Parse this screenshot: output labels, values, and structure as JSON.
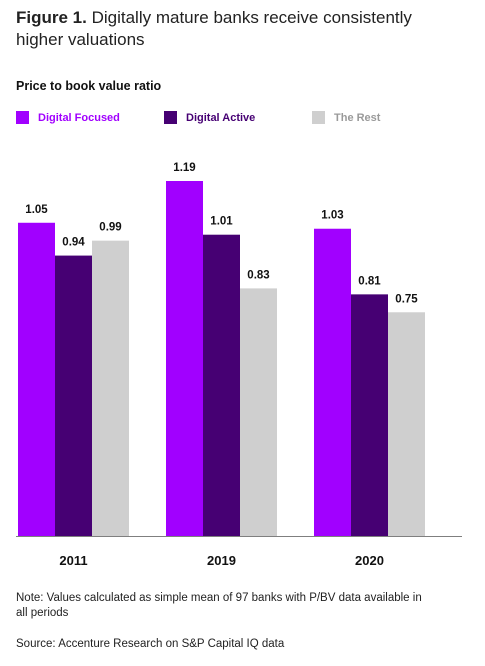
{
  "heading": {
    "figure_label": "Figure 1.",
    "title_line1": "Digitally mature banks receive consistently",
    "title_line2": "higher valuations"
  },
  "chart_data": {
    "type": "bar",
    "title": "Price to book value ratio",
    "categories": [
      "2011",
      "2019",
      "2020"
    ],
    "series": [
      {
        "name": "Digital Focused",
        "values": [
          1.05,
          1.19,
          1.03
        ],
        "color": "#a100ff"
      },
      {
        "name": "Digital Active",
        "values": [
          0.94,
          1.01,
          0.81
        ],
        "color": "#460073"
      },
      {
        "name": "The Rest",
        "values": [
          0.99,
          0.83,
          0.75
        ],
        "color": "#cfcfcf"
      }
    ],
    "ylim": [
      0,
      1.19
    ],
    "legend_position": "top-left",
    "grid": false,
    "axis_color": "#7f7f7f"
  },
  "footer": {
    "note": "Note: Values calculated as simple mean of 97 banks with P/BV data available in all periods",
    "source": "Source: Accenture Research on S&P Capital IQ data"
  }
}
